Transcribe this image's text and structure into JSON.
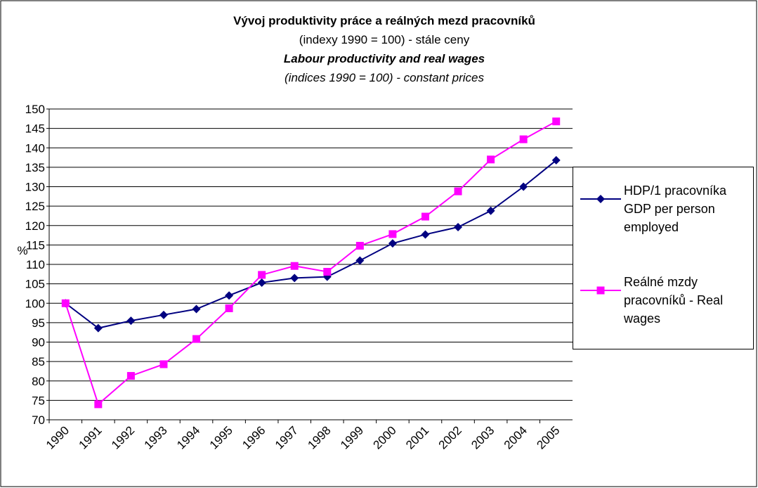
{
  "chart_data": {
    "type": "line",
    "title": "Vývoj produktivity práce a reálných mezd pracovníků",
    "subtitle": "(indexy 1990 = 100) - stále ceny",
    "title_en": "Labour productivity and real wages",
    "subtitle_en": "(indices 1990 = 100) - constant prices",
    "y_label": "%",
    "categories": [
      "1990",
      "1991",
      "1992",
      "1993",
      "1994",
      "1995",
      "1996",
      "1997",
      "1998",
      "1999",
      "2000",
      "2001",
      "2002",
      "2003",
      "2004",
      "2005"
    ],
    "series": [
      {
        "name": "HDP/1 pracovníka GDP per person employed",
        "color": "#000080",
        "marker": "diamond",
        "values": [
          100,
          93.6,
          95.5,
          97,
          98.5,
          102,
          105.3,
          106.5,
          106.8,
          111,
          115.4,
          117.7,
          119.6,
          123.8,
          130,
          136.8
        ]
      },
      {
        "name": "Reálné mzdy pracovníků - Real wages",
        "color": "#ff00ff",
        "marker": "square",
        "values": [
          100,
          74,
          81.3,
          84.3,
          90.8,
          98.7,
          107.3,
          109.6,
          108.1,
          114.8,
          117.8,
          122.3,
          128.8,
          137,
          142.2,
          146.8
        ]
      }
    ],
    "ylim": [
      70,
      150
    ],
    "yticks": [
      70,
      75,
      80,
      85,
      90,
      95,
      100,
      105,
      110,
      115,
      120,
      125,
      130,
      135,
      140,
      145,
      150
    ],
    "grid": true,
    "legend": "right"
  }
}
